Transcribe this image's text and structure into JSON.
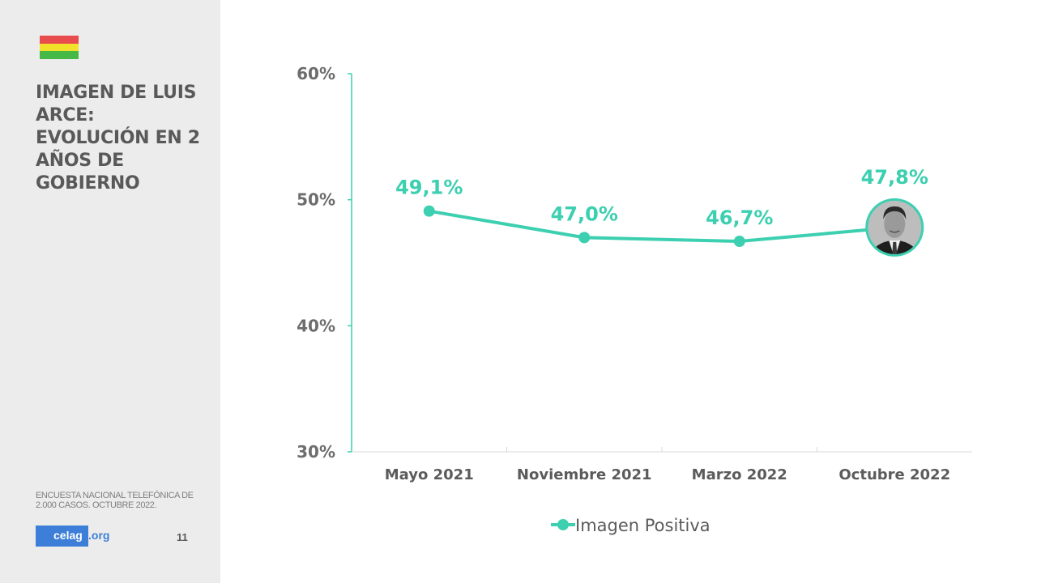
{
  "sidebar": {
    "flag_colors": [
      "#e84c4c",
      "#f2e12a",
      "#46b846"
    ],
    "title": "IMAGEN DE LUIS ARCE: EVOLUCIÓN EN 2 AÑOS DE GOBIERNO",
    "source_note": "ENCUESTA NACIONAL TELEFÓNICA DE 2.000 CASOS. OCTUBRE 2022.",
    "logo": {
      "part1": "celag",
      "part2": ".org"
    },
    "page_number": "11"
  },
  "colors": {
    "series": "#3ccfb0",
    "axis": "#3ccfb0",
    "sidebar_bg": "#ececec"
  },
  "chart_data": {
    "type": "line",
    "categories": [
      "Mayo 2021",
      "Noviembre 2021",
      "Marzo 2022",
      "Octubre 2022"
    ],
    "series": [
      {
        "name": "Imagen Positiva",
        "values": [
          49.1,
          47.0,
          46.7,
          47.8
        ],
        "labels": [
          "49,1%",
          "47,0%",
          "46,7%",
          "47,8%"
        ]
      }
    ],
    "ylim": [
      30,
      60
    ],
    "yticks": [
      30,
      40,
      50,
      60
    ],
    "ytick_labels": [
      "30%",
      "40%",
      "50%",
      "60%"
    ],
    "legend_position": "bottom",
    "last_point_marker": "portrait-photo"
  }
}
